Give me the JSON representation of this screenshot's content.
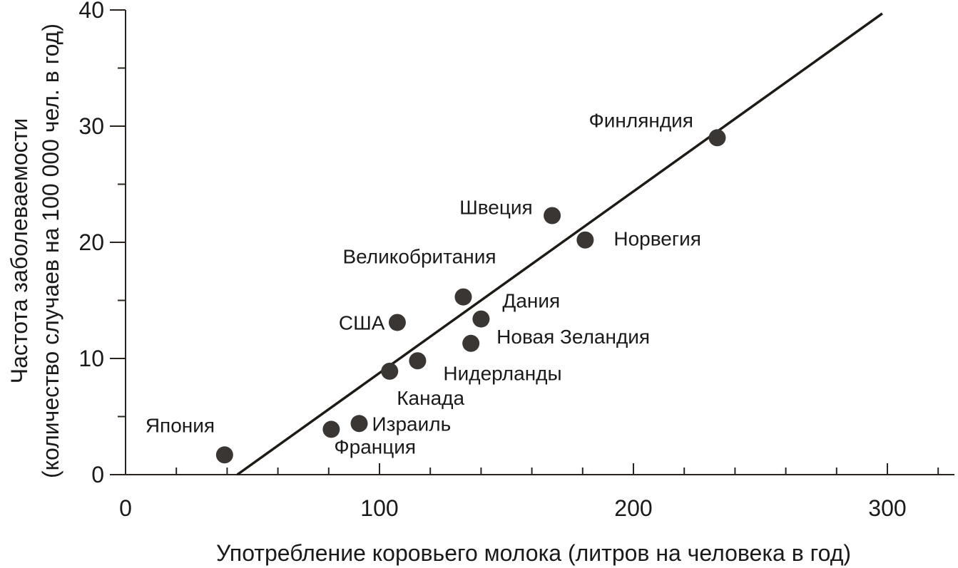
{
  "chart_data": {
    "type": "scatter",
    "title": "",
    "xlabel": "Употребление коровьего молока (литров на человека в год)",
    "ylabel_line1": "Частота заболеваемости",
    "ylabel_line2": "(количество случаев на 100 000 чел. в год)",
    "xlim": [
      0,
      325
    ],
    "ylim": [
      0,
      40
    ],
    "x_major_ticks": [
      0,
      100,
      200,
      300
    ],
    "x_minor_ticks": [
      20,
      40,
      60,
      80,
      120,
      140,
      160,
      180,
      220,
      240,
      260,
      280,
      320
    ],
    "y_major_ticks": [
      0,
      10,
      20,
      30,
      40
    ],
    "y_minor_ticks": [
      5,
      15,
      25,
      35
    ],
    "points": [
      {
        "label": "Япония",
        "x": 39,
        "y": 1.7
      },
      {
        "label": "Франция",
        "x": 81,
        "y": 3.9
      },
      {
        "label": "Израиль",
        "x": 92,
        "y": 4.4
      },
      {
        "label": "Канада",
        "x": 104,
        "y": 8.9
      },
      {
        "label": "Нидерланды",
        "x": 115,
        "y": 9.8
      },
      {
        "label": "США",
        "x": 107,
        "y": 13.1
      },
      {
        "label": "Великобритания",
        "x": 133,
        "y": 15.3
      },
      {
        "label": "Дания",
        "x": 140,
        "y": 13.4
      },
      {
        "label": "Новая Зеландия",
        "x": 136,
        "y": 11.3
      },
      {
        "label": "Швеция",
        "x": 168,
        "y": 22.3
      },
      {
        "label": "Норвегия",
        "x": 181,
        "y": 20.2
      },
      {
        "label": "Финляндия",
        "x": 233,
        "y": 29.0
      }
    ],
    "trendline": {
      "x": [
        44,
        298
      ],
      "y": [
        0,
        39.7
      ]
    },
    "grid": false,
    "legend": "none"
  }
}
